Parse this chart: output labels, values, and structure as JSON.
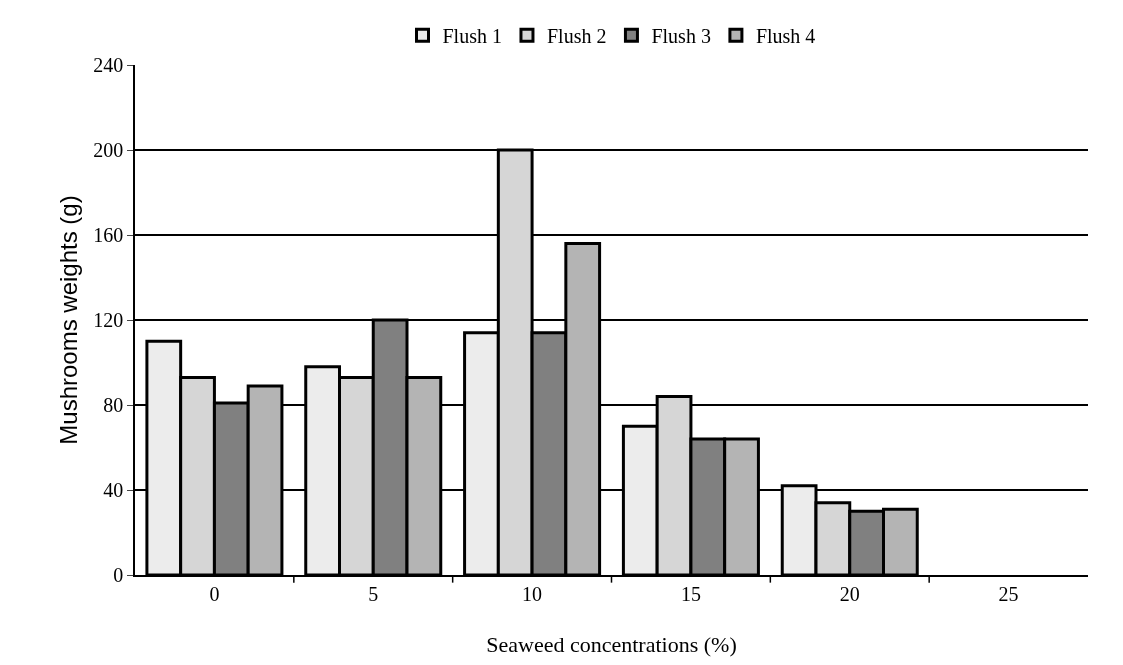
{
  "chart_data": {
    "type": "bar",
    "xlabel": "Seaweed concentrations (%)",
    "ylabel": "Mushrooms weights (g)",
    "categories": [
      "0",
      "5",
      "10",
      "15",
      "20",
      "25"
    ],
    "series": [
      {
        "name": "Flush 1",
        "color": "#ececec",
        "values": [
          110,
          98,
          114,
          70,
          42,
          null
        ]
      },
      {
        "name": "Flush 2",
        "color": "#d6d6d6",
        "values": [
          93,
          93,
          200,
          84,
          34,
          null
        ]
      },
      {
        "name": "Flush 3",
        "color": "#808080",
        "values": [
          81,
          120,
          114,
          64,
          30,
          null
        ]
      },
      {
        "name": "Flush 4",
        "color": "#b4b4b4",
        "values": [
          89,
          93,
          156,
          64,
          31,
          null
        ]
      }
    ],
    "ylim": [
      0,
      240
    ],
    "yticks": [
      0,
      40,
      80,
      120,
      160,
      200,
      240
    ],
    "grid": "y",
    "legend": "top"
  }
}
